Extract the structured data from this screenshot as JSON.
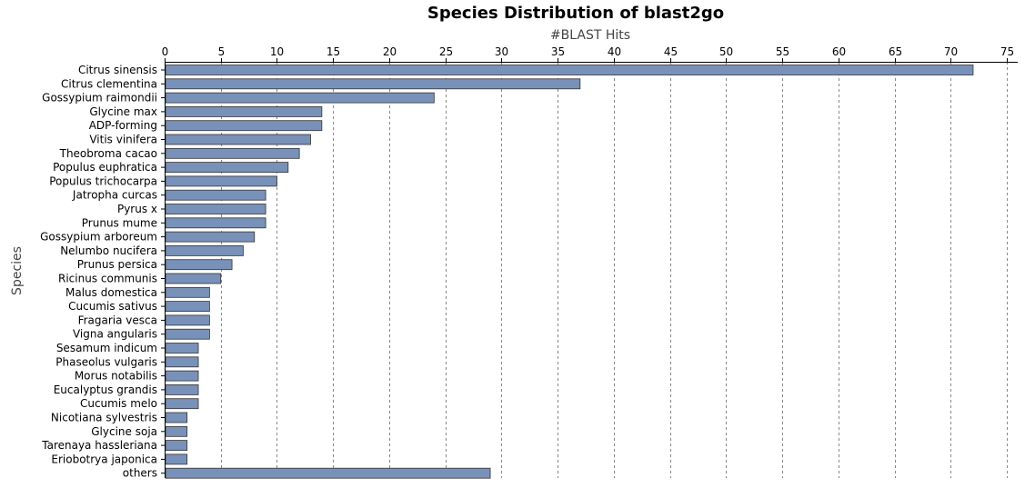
{
  "chart_data": {
    "type": "bar",
    "orientation": "horizontal",
    "title": "Species Distribution of blast2go",
    "xlabel": "#BLAST Hits",
    "ylabel": "Species",
    "xlim": [
      0,
      75
    ],
    "x_ticks": [
      0,
      5,
      10,
      15,
      20,
      25,
      30,
      35,
      40,
      45,
      50,
      55,
      60,
      65,
      70,
      75
    ],
    "x_axis_position": "top",
    "grid": "vertical dashed",
    "bar_color": "#7891b8",
    "categories": [
      "Citrus sinensis",
      "Citrus clementina",
      "Gossypium raimondii",
      "Glycine max",
      "ADP-forming",
      "Vitis vinifera",
      "Theobroma cacao",
      "Populus euphratica",
      "Populus trichocarpa",
      "Jatropha curcas",
      "Pyrus x",
      "Prunus mume",
      "Gossypium arboreum",
      "Nelumbo nucifera",
      "Prunus persica",
      "Ricinus communis",
      "Malus domestica",
      "Cucumis sativus",
      "Fragaria vesca",
      "Vigna angularis",
      "Sesamum indicum",
      "Phaseolus vulgaris",
      "Morus notabilis",
      "Eucalyptus grandis",
      "Cucumis melo",
      "Nicotiana sylvestris",
      "Glycine soja",
      "Tarenaya hassleriana",
      "Eriobotrya japonica",
      "others"
    ],
    "values": [
      72,
      37,
      24,
      14,
      14,
      13,
      12,
      11,
      10,
      9,
      9,
      9,
      8,
      7,
      6,
      5,
      4,
      4,
      4,
      4,
      3,
      3,
      3,
      3,
      3,
      2,
      2,
      2,
      2,
      29
    ]
  }
}
